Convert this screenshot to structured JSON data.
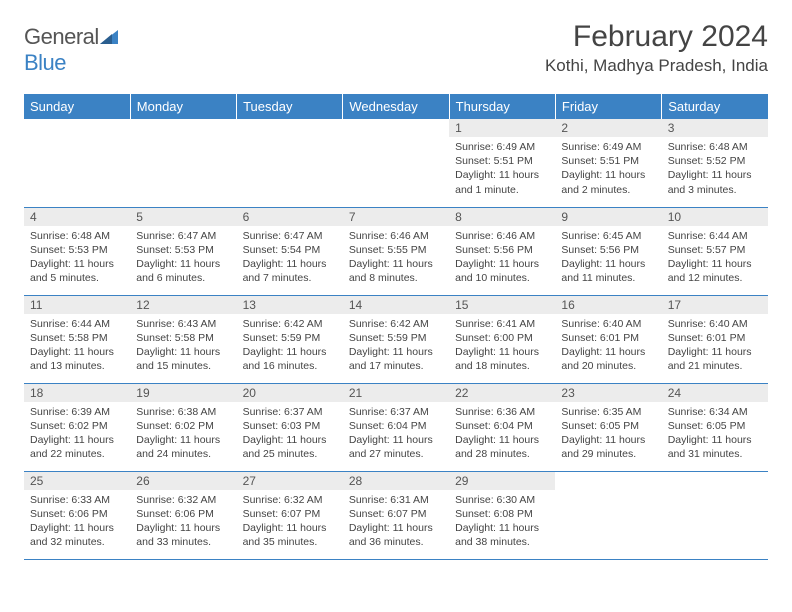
{
  "logo": {
    "text1": "General",
    "text2": "Blue"
  },
  "title": "February 2024",
  "location": "Kothi, Madhya Pradesh, India",
  "colors": {
    "header_bg": "#3b82c4",
    "header_text": "#ffffff",
    "daynum_bg": "#ececec",
    "border": "#3b82c4",
    "body_text": "#444444"
  },
  "weekdays": [
    "Sunday",
    "Monday",
    "Tuesday",
    "Wednesday",
    "Thursday",
    "Friday",
    "Saturday"
  ],
  "first_weekday_index": 4,
  "days": [
    {
      "n": 1,
      "sunrise": "6:49 AM",
      "sunset": "5:51 PM",
      "daylight": "11 hours and 1 minute."
    },
    {
      "n": 2,
      "sunrise": "6:49 AM",
      "sunset": "5:51 PM",
      "daylight": "11 hours and 2 minutes."
    },
    {
      "n": 3,
      "sunrise": "6:48 AM",
      "sunset": "5:52 PM",
      "daylight": "11 hours and 3 minutes."
    },
    {
      "n": 4,
      "sunrise": "6:48 AM",
      "sunset": "5:53 PM",
      "daylight": "11 hours and 5 minutes."
    },
    {
      "n": 5,
      "sunrise": "6:47 AM",
      "sunset": "5:53 PM",
      "daylight": "11 hours and 6 minutes."
    },
    {
      "n": 6,
      "sunrise": "6:47 AM",
      "sunset": "5:54 PM",
      "daylight": "11 hours and 7 minutes."
    },
    {
      "n": 7,
      "sunrise": "6:46 AM",
      "sunset": "5:55 PM",
      "daylight": "11 hours and 8 minutes."
    },
    {
      "n": 8,
      "sunrise": "6:46 AM",
      "sunset": "5:56 PM",
      "daylight": "11 hours and 10 minutes."
    },
    {
      "n": 9,
      "sunrise": "6:45 AM",
      "sunset": "5:56 PM",
      "daylight": "11 hours and 11 minutes."
    },
    {
      "n": 10,
      "sunrise": "6:44 AM",
      "sunset": "5:57 PM",
      "daylight": "11 hours and 12 minutes."
    },
    {
      "n": 11,
      "sunrise": "6:44 AM",
      "sunset": "5:58 PM",
      "daylight": "11 hours and 13 minutes."
    },
    {
      "n": 12,
      "sunrise": "6:43 AM",
      "sunset": "5:58 PM",
      "daylight": "11 hours and 15 minutes."
    },
    {
      "n": 13,
      "sunrise": "6:42 AM",
      "sunset": "5:59 PM",
      "daylight": "11 hours and 16 minutes."
    },
    {
      "n": 14,
      "sunrise": "6:42 AM",
      "sunset": "5:59 PM",
      "daylight": "11 hours and 17 minutes."
    },
    {
      "n": 15,
      "sunrise": "6:41 AM",
      "sunset": "6:00 PM",
      "daylight": "11 hours and 18 minutes."
    },
    {
      "n": 16,
      "sunrise": "6:40 AM",
      "sunset": "6:01 PM",
      "daylight": "11 hours and 20 minutes."
    },
    {
      "n": 17,
      "sunrise": "6:40 AM",
      "sunset": "6:01 PM",
      "daylight": "11 hours and 21 minutes."
    },
    {
      "n": 18,
      "sunrise": "6:39 AM",
      "sunset": "6:02 PM",
      "daylight": "11 hours and 22 minutes."
    },
    {
      "n": 19,
      "sunrise": "6:38 AM",
      "sunset": "6:02 PM",
      "daylight": "11 hours and 24 minutes."
    },
    {
      "n": 20,
      "sunrise": "6:37 AM",
      "sunset": "6:03 PM",
      "daylight": "11 hours and 25 minutes."
    },
    {
      "n": 21,
      "sunrise": "6:37 AM",
      "sunset": "6:04 PM",
      "daylight": "11 hours and 27 minutes."
    },
    {
      "n": 22,
      "sunrise": "6:36 AM",
      "sunset": "6:04 PM",
      "daylight": "11 hours and 28 minutes."
    },
    {
      "n": 23,
      "sunrise": "6:35 AM",
      "sunset": "6:05 PM",
      "daylight": "11 hours and 29 minutes."
    },
    {
      "n": 24,
      "sunrise": "6:34 AM",
      "sunset": "6:05 PM",
      "daylight": "11 hours and 31 minutes."
    },
    {
      "n": 25,
      "sunrise": "6:33 AM",
      "sunset": "6:06 PM",
      "daylight": "11 hours and 32 minutes."
    },
    {
      "n": 26,
      "sunrise": "6:32 AM",
      "sunset": "6:06 PM",
      "daylight": "11 hours and 33 minutes."
    },
    {
      "n": 27,
      "sunrise": "6:32 AM",
      "sunset": "6:07 PM",
      "daylight": "11 hours and 35 minutes."
    },
    {
      "n": 28,
      "sunrise": "6:31 AM",
      "sunset": "6:07 PM",
      "daylight": "11 hours and 36 minutes."
    },
    {
      "n": 29,
      "sunrise": "6:30 AM",
      "sunset": "6:08 PM",
      "daylight": "11 hours and 38 minutes."
    }
  ],
  "labels": {
    "sunrise": "Sunrise:",
    "sunset": "Sunset:",
    "daylight": "Daylight:"
  }
}
